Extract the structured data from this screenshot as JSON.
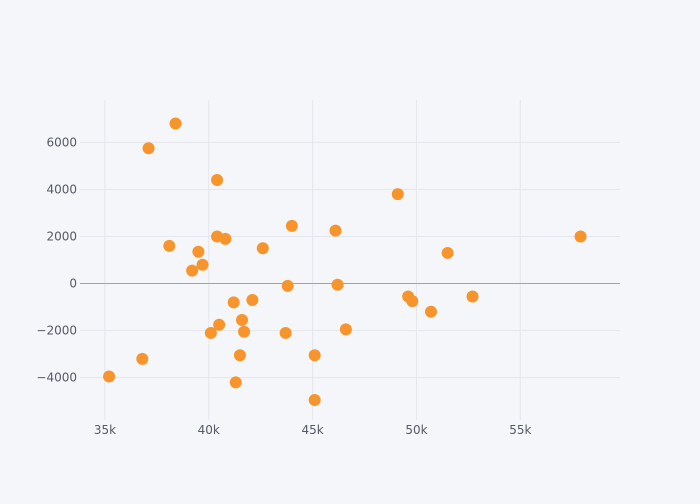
{
  "chart_data": {
    "type": "scatter",
    "title": "",
    "xlabel": "",
    "ylabel": "",
    "xlim": [
      33800,
      59800
    ],
    "ylim": [
      -5800,
      7800
    ],
    "x_ticks": [
      35000,
      40000,
      45000,
      50000,
      55000
    ],
    "x_tick_labels": [
      "35k",
      "40k",
      "45k",
      "50k",
      "55k"
    ],
    "y_ticks": [
      -4000,
      -2000,
      0,
      2000,
      4000,
      6000
    ],
    "y_tick_labels": [
      "−4000",
      "−2000",
      "0",
      "2000",
      "4000",
      "6000"
    ],
    "grid": true,
    "zero_line": true,
    "legend": "none",
    "colors": {
      "background": "#f5f6f9",
      "grid": "#e3e6ec",
      "zero_line": "#e6858b",
      "marker": "#f7942c",
      "tick_text": "#555a66"
    },
    "series": [
      {
        "points": [
          {
            "x": 35200,
            "y": -3950
          },
          {
            "x": 36800,
            "y": -3200
          },
          {
            "x": 37100,
            "y": 5750
          },
          {
            "x": 38100,
            "y": 1600
          },
          {
            "x": 38400,
            "y": 6800
          },
          {
            "x": 39200,
            "y": 550
          },
          {
            "x": 39500,
            "y": 1350
          },
          {
            "x": 39700,
            "y": 800
          },
          {
            "x": 40100,
            "y": -2100
          },
          {
            "x": 40400,
            "y": 4400
          },
          {
            "x": 40400,
            "y": 2000
          },
          {
            "x": 40500,
            "y": -1750
          },
          {
            "x": 40800,
            "y": 1900
          },
          {
            "x": 41200,
            "y": -800
          },
          {
            "x": 41300,
            "y": -4200
          },
          {
            "x": 41500,
            "y": -3050
          },
          {
            "x": 41600,
            "y": -1550
          },
          {
            "x": 41700,
            "y": -2050
          },
          {
            "x": 42100,
            "y": -700
          },
          {
            "x": 42600,
            "y": 1500
          },
          {
            "x": 43700,
            "y": -2100
          },
          {
            "x": 43800,
            "y": -100
          },
          {
            "x": 44000,
            "y": 2450
          },
          {
            "x": 45100,
            "y": -3050
          },
          {
            "x": 45100,
            "y": -4950
          },
          {
            "x": 46100,
            "y": 2250
          },
          {
            "x": 46200,
            "y": -50
          },
          {
            "x": 46600,
            "y": -1950
          },
          {
            "x": 49100,
            "y": 3800
          },
          {
            "x": 49600,
            "y": -550
          },
          {
            "x": 49800,
            "y": -750
          },
          {
            "x": 50700,
            "y": -1200
          },
          {
            "x": 51500,
            "y": 1300
          },
          {
            "x": 52700,
            "y": -550
          },
          {
            "x": 57900,
            "y": 2000
          }
        ]
      }
    ]
  }
}
